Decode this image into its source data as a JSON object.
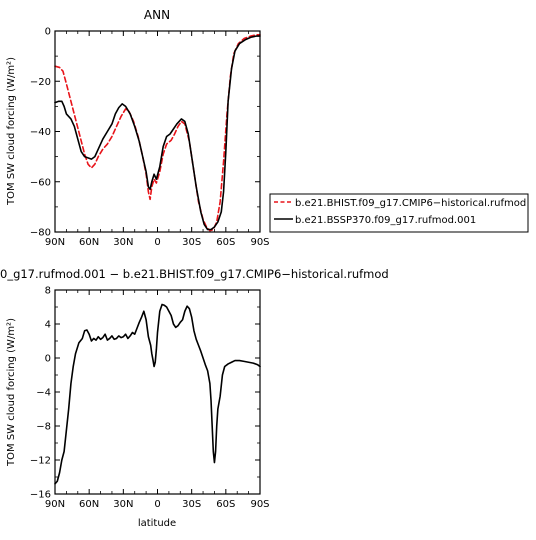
{
  "chart_data": [
    {
      "type": "line",
      "title": "ANN",
      "xlabel": "",
      "ylabel": "TOM SW cloud forcing (W/m²)",
      "xlim": [
        90,
        -90
      ],
      "ylim": [
        -80,
        0
      ],
      "x_ticks": [
        90,
        60,
        30,
        0,
        -30,
        -60,
        -90
      ],
      "x_tick_labels": [
        "90N",
        "60N",
        "30N",
        "0",
        "30S",
        "60S",
        "90S"
      ],
      "y_ticks": [
        0,
        -20,
        -40,
        -60,
        -80
      ],
      "y_tick_labels": [
        "0",
        "−20",
        "−40",
        "−60",
        "−80"
      ],
      "legend_position": "right",
      "series": [
        {
          "name": "b.e21.BHIST.f09_g17.CMIP6−historical.rufmod",
          "color": "#e8141a",
          "dash": "dashed",
          "points": [
            [
              90,
              -14
            ],
            [
              86,
              -14.5
            ],
            [
              83,
              -16
            ],
            [
              80,
              -21
            ],
            [
              76,
              -28
            ],
            [
              72,
              -35
            ],
            [
              68,
              -42
            ],
            [
              64,
              -49
            ],
            [
              61,
              -53
            ],
            [
              58,
              -54.5
            ],
            [
              55,
              -53
            ],
            [
              52,
              -50
            ],
            [
              48,
              -47
            ],
            [
              44,
              -45
            ],
            [
              40,
              -42
            ],
            [
              36,
              -38
            ],
            [
              32,
              -34
            ],
            [
              28,
              -31
            ],
            [
              25,
              -32
            ],
            [
              21,
              -36
            ],
            [
              17,
              -42
            ],
            [
              13,
              -50
            ],
            [
              10,
              -57
            ],
            [
              8,
              -64
            ],
            [
              6.5,
              -67
            ],
            [
              5,
              -62
            ],
            [
              3,
              -59
            ],
            [
              1,
              -60.5
            ],
            [
              -2,
              -56
            ],
            [
              -5,
              -49
            ],
            [
              -8,
              -45
            ],
            [
              -12,
              -43.5
            ],
            [
              -15,
              -41
            ],
            [
              -18,
              -38
            ],
            [
              -21,
              -36
            ],
            [
              -24,
              -37
            ],
            [
              -28,
              -44
            ],
            [
              -32,
              -56
            ],
            [
              -36,
              -68
            ],
            [
              -40,
              -75
            ],
            [
              -43,
              -78
            ],
            [
              -46,
              -79.5
            ],
            [
              -49,
              -79
            ],
            [
              -52,
              -76
            ],
            [
              -55,
              -68
            ],
            [
              -58,
              -52
            ],
            [
              -61,
              -33
            ],
            [
              -64,
              -18
            ],
            [
              -67,
              -9
            ],
            [
              -71,
              -5
            ],
            [
              -76,
              -3
            ],
            [
              -82,
              -2
            ],
            [
              -87,
              -1.5
            ],
            [
              -90,
              -1.5
            ]
          ]
        },
        {
          "name": "b.e21.BSSP370.f09_g17.rufmod.001",
          "color": "#000000",
          "dash": "solid",
          "points": [
            [
              90,
              -28.5
            ],
            [
              87,
              -28
            ],
            [
              84,
              -28
            ],
            [
              82,
              -30
            ],
            [
              80,
              -33
            ],
            [
              76,
              -35
            ],
            [
              73,
              -38
            ],
            [
              70,
              -43
            ],
            [
              67,
              -48
            ],
            [
              64,
              -50
            ],
            [
              61,
              -50.5
            ],
            [
              58,
              -51
            ],
            [
              55,
              -50
            ],
            [
              52,
              -47
            ],
            [
              48,
              -43
            ],
            [
              44,
              -40
            ],
            [
              40,
              -37
            ],
            [
              37,
              -33
            ],
            [
              34,
              -30.5
            ],
            [
              31,
              -29
            ],
            [
              28,
              -30
            ],
            [
              24,
              -33
            ],
            [
              20,
              -38
            ],
            [
              16,
              -44
            ],
            [
              13,
              -50
            ],
            [
              10,
              -56
            ],
            [
              8,
              -62
            ],
            [
              6.5,
              -63
            ],
            [
              5,
              -60
            ],
            [
              3,
              -57
            ],
            [
              1,
              -59
            ],
            [
              -2,
              -54
            ],
            [
              -5,
              -46
            ],
            [
              -8,
              -42
            ],
            [
              -11,
              -41
            ],
            [
              -14,
              -39
            ],
            [
              -17,
              -37
            ],
            [
              -21,
              -35
            ],
            [
              -24,
              -36
            ],
            [
              -27,
              -41
            ],
            [
              -30,
              -50
            ],
            [
              -34,
              -62
            ],
            [
              -38,
              -72
            ],
            [
              -41,
              -77
            ],
            [
              -44,
              -79
            ],
            [
              -47,
              -79
            ],
            [
              -50,
              -78
            ],
            [
              -53,
              -76
            ],
            [
              -56,
              -72
            ],
            [
              -58,
              -64
            ],
            [
              -60,
              -48
            ],
            [
              -62,
              -28
            ],
            [
              -65,
              -15
            ],
            [
              -68,
              -8
            ],
            [
              -72,
              -5
            ],
            [
              -77,
              -3.5
            ],
            [
              -82,
              -2.5
            ],
            [
              -87,
              -2
            ],
            [
              -90,
              -2
            ]
          ]
        }
      ]
    },
    {
      "type": "line",
      "title": "0_g17.rufmod.001  −  b.e21.BHIST.f09_g17.CMIP6−historical.rufmod",
      "xlabel": "latitude",
      "ylabel": "TOM SW cloud forcing (W/m²)",
      "xlim": [
        90,
        -90
      ],
      "ylim": [
        -16,
        8
      ],
      "x_ticks": [
        90,
        60,
        30,
        0,
        -30,
        -60,
        -90
      ],
      "x_tick_labels": [
        "90N",
        "60N",
        "30N",
        "0",
        "30S",
        "60S",
        "90S"
      ],
      "y_ticks": [
        8,
        4,
        0,
        -4,
        -8,
        -12,
        -16
      ],
      "y_tick_labels": [
        "8",
        "4",
        "0",
        "−4",
        "−8",
        "−12",
        "−16"
      ],
      "series": [
        {
          "color": "#000000",
          "dash": "solid",
          "points": [
            [
              90,
              -14.8
            ],
            [
              88,
              -14.5
            ],
            [
              86,
              -13.5
            ],
            [
              84,
              -12
            ],
            [
              82,
              -11
            ],
            [
              80,
              -8.5
            ],
            [
              78,
              -6
            ],
            [
              76,
              -3
            ],
            [
              74,
              -1
            ],
            [
              72,
              0.5
            ],
            [
              69,
              1.8
            ],
            [
              66,
              2.3
            ],
            [
              64,
              3.2
            ],
            [
              62,
              3.3
            ],
            [
              60,
              2.8
            ],
            [
              58,
              2
            ],
            [
              56,
              2.3
            ],
            [
              54,
              2.1
            ],
            [
              52,
              2.5
            ],
            [
              50,
              2.2
            ],
            [
              48,
              2.4
            ],
            [
              46,
              2.8
            ],
            [
              44,
              2.1
            ],
            [
              42,
              2.3
            ],
            [
              40,
              2.6
            ],
            [
              38,
              2.2
            ],
            [
              36,
              2.3
            ],
            [
              34,
              2.6
            ],
            [
              32,
              2.4
            ],
            [
              30,
              2.5
            ],
            [
              28,
              2.8
            ],
            [
              26,
              2.3
            ],
            [
              24,
              2.6
            ],
            [
              22,
              3
            ],
            [
              20,
              2.8
            ],
            [
              18,
              3.5
            ],
            [
              16,
              4.2
            ],
            [
              14,
              4.8
            ],
            [
              12,
              5.5
            ],
            [
              10,
              4.5
            ],
            [
              8,
              2.5
            ],
            [
              6,
              1.5
            ],
            [
              5,
              0.5
            ],
            [
              4,
              -0.2
            ],
            [
              3,
              -1
            ],
            [
              2,
              -0.5
            ],
            [
              1,
              1
            ],
            [
              0,
              3
            ],
            [
              -2,
              5.5
            ],
            [
              -4,
              6.3
            ],
            [
              -6,
              6.2
            ],
            [
              -8,
              6
            ],
            [
              -10,
              5.5
            ],
            [
              -12,
              5
            ],
            [
              -14,
              4
            ],
            [
              -16,
              3.6
            ],
            [
              -18,
              3.8
            ],
            [
              -20,
              4.2
            ],
            [
              -22,
              4.5
            ],
            [
              -24,
              5.5
            ],
            [
              -26,
              6.1
            ],
            [
              -28,
              5.8
            ],
            [
              -30,
              4.8
            ],
            [
              -32,
              3.2
            ],
            [
              -34,
              2.2
            ],
            [
              -36,
              1.5
            ],
            [
              -38,
              0.8
            ],
            [
              -40,
              0
            ],
            [
              -42,
              -0.8
            ],
            [
              -44,
              -1.5
            ],
            [
              -46,
              -3
            ],
            [
              -47,
              -5
            ],
            [
              -48,
              -8
            ],
            [
              -49,
              -11
            ],
            [
              -50,
              -12.3
            ],
            [
              -51,
              -11
            ],
            [
              -52,
              -8
            ],
            [
              -53,
              -6
            ],
            [
              -55,
              -4.5
            ],
            [
              -57,
              -2
            ],
            [
              -59,
              -1
            ],
            [
              -62,
              -0.7
            ],
            [
              -65,
              -0.5
            ],
            [
              -68,
              -0.3
            ],
            [
              -72,
              -0.3
            ],
            [
              -76,
              -0.4
            ],
            [
              -80,
              -0.5
            ],
            [
              -84,
              -0.6
            ],
            [
              -88,
              -0.8
            ],
            [
              -90,
              -1
            ]
          ]
        }
      ]
    }
  ]
}
